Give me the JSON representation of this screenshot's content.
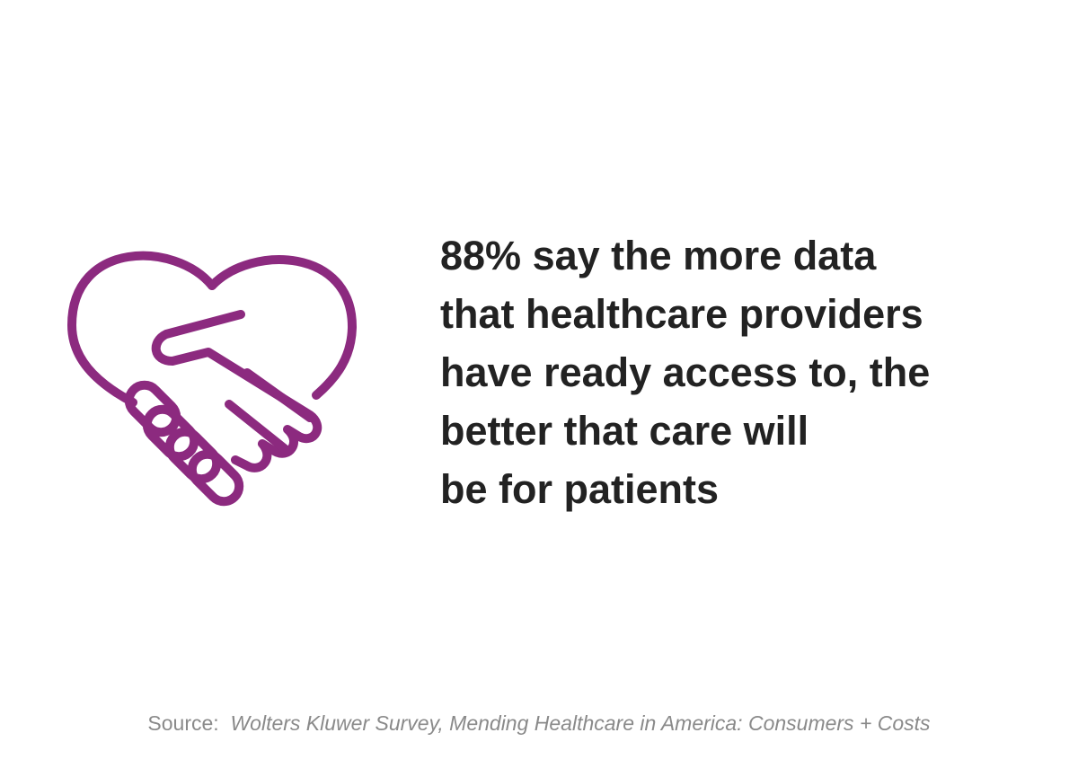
{
  "statement": {
    "lines": [
      "88% say the more data",
      "that healthcare providers",
      "have ready access to, the",
      "better that care will",
      "be for patients"
    ]
  },
  "source": {
    "label": "Source:",
    "text": "Wolters Kluwer Survey, Mending Healthcare in America: Consumers + Costs"
  }
}
